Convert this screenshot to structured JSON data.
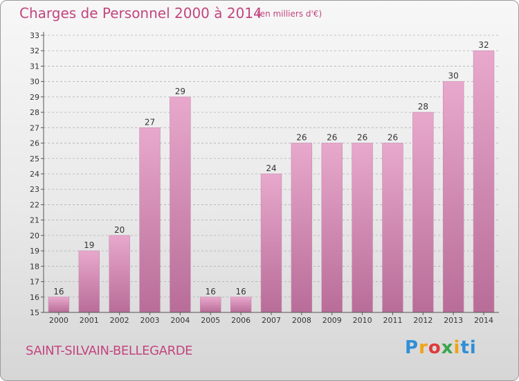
{
  "chart_data": {
    "type": "bar",
    "title": "Charges de Personnel 2000 à 2014",
    "subtitle": "(en milliers d'€)",
    "categories": [
      "2000",
      "2001",
      "2002",
      "2003",
      "2004",
      "2005",
      "2006",
      "2007",
      "2008",
      "2009",
      "2010",
      "2011",
      "2012",
      "2013",
      "2014"
    ],
    "values": [
      16,
      19,
      20,
      27,
      29,
      16,
      16,
      24,
      26,
      26,
      26,
      26,
      28,
      30,
      32
    ],
    "ylim": [
      15,
      33
    ],
    "yticks": [
      15,
      16,
      17,
      18,
      19,
      20,
      21,
      22,
      23,
      24,
      25,
      26,
      27,
      28,
      29,
      30,
      31,
      32,
      33
    ],
    "grid": "horizontal dashed",
    "bar_color_light": "#e8a8cc",
    "bar_color_dark": "#b86d98"
  },
  "commune": "SAINT-SILVAIN-BELLEGARDE",
  "logo": {
    "letters": [
      "P",
      "r",
      "o",
      "x",
      "i",
      "t",
      "i"
    ]
  },
  "colors": {
    "accent": "#c2457f"
  }
}
